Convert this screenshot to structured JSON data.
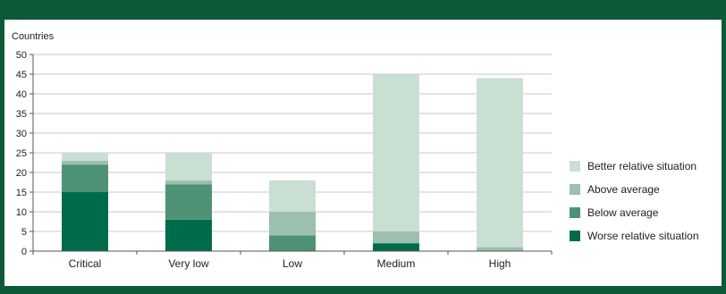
{
  "header": {
    "title": ""
  },
  "chart_data": {
    "type": "bar",
    "stacked": true,
    "ylabel": "Countries",
    "xlabel": "",
    "ylim": [
      0,
      50
    ],
    "yticks": [
      0,
      5,
      10,
      15,
      20,
      25,
      30,
      35,
      40,
      45,
      50
    ],
    "categories": [
      "Critical",
      "Very low",
      "Low",
      "Medium",
      "High"
    ],
    "series": [
      {
        "name": "Worse relative situation",
        "color": "#006b4a",
        "values": [
          15,
          8,
          0,
          2,
          0
        ]
      },
      {
        "name": "Below average",
        "color": "#4e9275",
        "values": [
          7,
          9,
          4,
          0,
          0
        ]
      },
      {
        "name": "Above average",
        "color": "#9bc0ae",
        "values": [
          1,
          1,
          6,
          3,
          1
        ]
      },
      {
        "name": "Better relative situation",
        "color": "#cadfd3",
        "values": [
          2,
          7,
          8,
          40,
          43
        ]
      }
    ],
    "legend_position": "right",
    "grid": true
  }
}
